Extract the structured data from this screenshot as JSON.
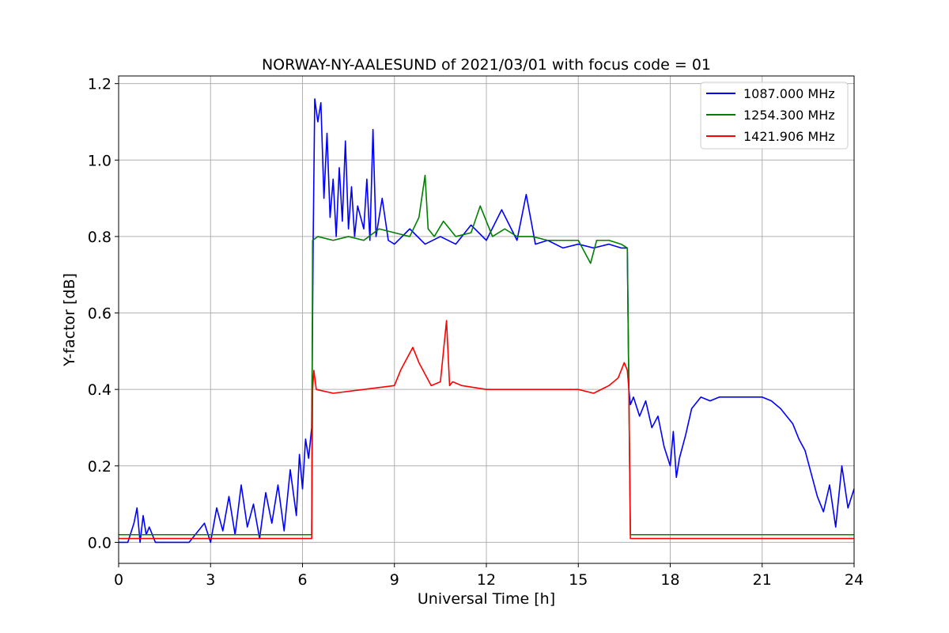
{
  "chart_data": {
    "type": "line",
    "title": "NORWAY-NY-AALESUND of 2021/03/01 with focus code = 01",
    "xlabel": "Universal Time [h]",
    "ylabel": "Y-factor [dB]",
    "xlim": [
      0,
      24
    ],
    "ylim": [
      -0.055,
      1.22
    ],
    "xticks": [
      0,
      3,
      6,
      9,
      12,
      15,
      18,
      21,
      24
    ],
    "xtick_labels": [
      "0",
      "3",
      "6",
      "9",
      "12",
      "15",
      "18",
      "21",
      "24"
    ],
    "yticks": [
      0.0,
      0.2,
      0.4,
      0.6,
      0.8,
      1.0,
      1.2
    ],
    "ytick_labels": [
      "0.0",
      "0.2",
      "0.4",
      "0.6",
      "0.8",
      "1.0",
      "1.2"
    ],
    "grid": true,
    "legend_position": "top-right",
    "series": [
      {
        "name": "1087.000 MHz",
        "color": "#0000ff",
        "x": [
          0.0,
          0.3,
          0.5,
          0.6,
          0.7,
          0.8,
          0.9,
          1.0,
          1.2,
          1.5,
          2.0,
          2.3,
          2.5,
          2.8,
          3.0,
          3.2,
          3.4,
          3.6,
          3.8,
          4.0,
          4.2,
          4.4,
          4.6,
          4.8,
          5.0,
          5.2,
          5.4,
          5.6,
          5.8,
          5.9,
          6.0,
          6.1,
          6.2,
          6.3,
          6.35,
          6.4,
          6.5,
          6.6,
          6.7,
          6.8,
          6.9,
          7.0,
          7.1,
          7.2,
          7.3,
          7.4,
          7.5,
          7.6,
          7.7,
          7.8,
          8.0,
          8.1,
          8.2,
          8.3,
          8.4,
          8.6,
          8.8,
          9.0,
          9.5,
          10.0,
          10.5,
          11.0,
          11.5,
          12.0,
          12.5,
          13.0,
          13.3,
          13.6,
          14.0,
          14.5,
          15.0,
          15.5,
          16.0,
          16.4,
          16.6,
          16.65,
          16.7,
          16.8,
          17.0,
          17.2,
          17.4,
          17.6,
          17.8,
          18.0,
          18.1,
          18.2,
          18.3,
          18.5,
          18.7,
          19.0,
          19.3,
          19.6,
          20.0,
          20.5,
          21.0,
          21.3,
          21.6,
          22.0,
          22.2,
          22.4,
          22.6,
          22.8,
          23.0,
          23.2,
          23.4,
          23.6,
          23.8,
          24.0
        ],
        "y": [
          0.0,
          0.0,
          0.05,
          0.09,
          0.0,
          0.07,
          0.02,
          0.04,
          0.0,
          0.0,
          0.0,
          0.0,
          0.02,
          0.05,
          0.0,
          0.09,
          0.03,
          0.12,
          0.02,
          0.15,
          0.04,
          0.1,
          0.01,
          0.13,
          0.05,
          0.15,
          0.03,
          0.19,
          0.07,
          0.23,
          0.14,
          0.27,
          0.22,
          0.3,
          0.8,
          1.16,
          1.1,
          1.15,
          0.9,
          1.07,
          0.85,
          0.95,
          0.8,
          0.98,
          0.84,
          1.05,
          0.82,
          0.93,
          0.8,
          0.88,
          0.82,
          0.95,
          0.79,
          1.08,
          0.8,
          0.9,
          0.79,
          0.78,
          0.82,
          0.78,
          0.8,
          0.78,
          0.83,
          0.79,
          0.87,
          0.79,
          0.91,
          0.78,
          0.79,
          0.77,
          0.78,
          0.77,
          0.78,
          0.77,
          0.77,
          0.4,
          0.36,
          0.38,
          0.33,
          0.37,
          0.3,
          0.33,
          0.25,
          0.2,
          0.29,
          0.17,
          0.22,
          0.28,
          0.35,
          0.38,
          0.37,
          0.38,
          0.38,
          0.38,
          0.38,
          0.37,
          0.35,
          0.31,
          0.27,
          0.24,
          0.18,
          0.12,
          0.08,
          0.15,
          0.04,
          0.2,
          0.09,
          0.14
        ]
      },
      {
        "name": "1254.300 MHz",
        "color": "#008000",
        "x": [
          0.0,
          6.3,
          6.33,
          6.5,
          7.0,
          7.5,
          8.0,
          8.5,
          9.0,
          9.5,
          9.8,
          10.0,
          10.1,
          10.3,
          10.6,
          11.0,
          11.5,
          11.8,
          12.2,
          12.6,
          13.0,
          13.5,
          14.0,
          14.5,
          15.0,
          15.2,
          15.4,
          15.6,
          16.0,
          16.4,
          16.6,
          16.65,
          16.7,
          24.0
        ],
        "y": [
          0.02,
          0.02,
          0.79,
          0.8,
          0.79,
          0.8,
          0.79,
          0.82,
          0.81,
          0.8,
          0.85,
          0.96,
          0.82,
          0.8,
          0.84,
          0.8,
          0.81,
          0.88,
          0.8,
          0.82,
          0.8,
          0.8,
          0.79,
          0.79,
          0.79,
          0.76,
          0.73,
          0.79,
          0.79,
          0.78,
          0.77,
          0.4,
          0.02,
          0.02
        ]
      },
      {
        "name": "1421.906 MHz",
        "color": "#ff0000",
        "x": [
          0.0,
          6.3,
          6.33,
          6.37,
          6.45,
          7.0,
          8.0,
          9.0,
          9.2,
          9.4,
          9.6,
          9.8,
          10.0,
          10.2,
          10.5,
          10.7,
          10.8,
          10.9,
          11.2,
          12.0,
          13.0,
          14.0,
          15.0,
          15.5,
          16.0,
          16.3,
          16.5,
          16.6,
          16.65,
          16.7,
          24.0
        ],
        "y": [
          0.01,
          0.01,
          0.4,
          0.45,
          0.4,
          0.39,
          0.4,
          0.41,
          0.45,
          0.48,
          0.51,
          0.47,
          0.44,
          0.41,
          0.42,
          0.58,
          0.41,
          0.42,
          0.41,
          0.4,
          0.4,
          0.4,
          0.4,
          0.39,
          0.41,
          0.43,
          0.47,
          0.45,
          0.4,
          0.01,
          0.01
        ]
      }
    ]
  }
}
